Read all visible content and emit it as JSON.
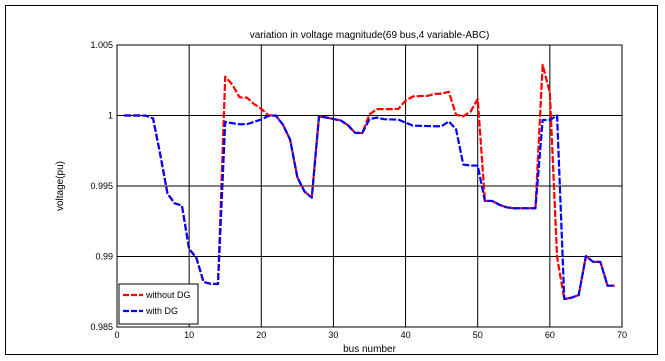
{
  "chart_data": {
    "type": "line",
    "title": "variation in voltage magnitude(69 bus,4 variable-ABC)",
    "xlabel": "bus number",
    "ylabel": "voltage(pu)",
    "xlim": [
      0,
      70
    ],
    "ylim": [
      0.985,
      1.005
    ],
    "xticks": [
      0,
      10,
      20,
      30,
      40,
      50,
      60,
      70
    ],
    "yticks": [
      0.985,
      0.99,
      0.995,
      1,
      1.005
    ],
    "xtick_labels": [
      "0",
      "10",
      "20",
      "30",
      "40",
      "50",
      "60",
      "70"
    ],
    "ytick_labels": [
      "0.985",
      "0.99",
      "0.995",
      "1",
      "1.005"
    ],
    "grid": true,
    "legend_position": "bottom-left",
    "series": [
      {
        "name": "without DG",
        "color": "#ff0000",
        "x": [
          1,
          2,
          3,
          4,
          5,
          6,
          7,
          8,
          9,
          10,
          11,
          12,
          13,
          14,
          15,
          16,
          17,
          18,
          19,
          20,
          21,
          22,
          23,
          24,
          25,
          26,
          27,
          28,
          29,
          30,
          31,
          32,
          33,
          34,
          35,
          36,
          37,
          38,
          39,
          40,
          41,
          42,
          43,
          44,
          45,
          46,
          47,
          48,
          49,
          50,
          51,
          52,
          53,
          54,
          55,
          56,
          57,
          58,
          59,
          60,
          61,
          62,
          63,
          64,
          65,
          66,
          67,
          68,
          69
        ],
        "y": [
          1.0,
          1.0,
          1.0,
          0.99999,
          0.99979,
          0.99722,
          0.99446,
          0.99377,
          0.99361,
          0.99053,
          0.98991,
          0.98819,
          0.98806,
          0.98805,
          1.00276,
          1.00218,
          1.00128,
          1.00127,
          1.00081,
          1.00047,
          1.00002,
          1.0,
          0.99935,
          0.99828,
          0.99562,
          0.9946,
          0.99418,
          0.99993,
          0.99986,
          0.99975,
          0.99965,
          0.99932,
          0.99877,
          0.99876,
          1.00008,
          1.00045,
          1.00045,
          1.00045,
          1.00047,
          1.00106,
          1.00135,
          1.00138,
          1.00139,
          1.00153,
          1.00155,
          1.00168,
          1.00005,
          0.99994,
          1.00027,
          1.00117,
          0.99394,
          0.99394,
          0.99367,
          0.99349,
          0.99342,
          0.99342,
          0.99342,
          0.99342,
          1.00359,
          1.00162,
          0.98997,
          0.98698,
          0.98708,
          0.98727,
          0.99003,
          0.98962,
          0.98962,
          0.98793,
          0.98793
        ]
      },
      {
        "name": "with DG",
        "color": "#0000ff",
        "x": [
          1,
          2,
          3,
          4,
          5,
          6,
          7,
          8,
          9,
          10,
          11,
          12,
          13,
          14,
          15,
          16,
          17,
          18,
          19,
          20,
          21,
          22,
          23,
          24,
          25,
          26,
          27,
          28,
          29,
          30,
          31,
          32,
          33,
          34,
          35,
          36,
          37,
          38,
          39,
          40,
          41,
          42,
          43,
          44,
          45,
          46,
          47,
          48,
          49,
          50,
          51,
          52,
          53,
          54,
          55,
          56,
          57,
          58,
          59,
          60,
          61,
          62,
          63,
          64,
          65,
          66,
          67,
          68,
          69
        ],
        "y": [
          1.0,
          1.0,
          1.0,
          0.99999,
          0.99979,
          0.99722,
          0.99446,
          0.99377,
          0.99361,
          0.99053,
          0.98991,
          0.98819,
          0.98806,
          0.98805,
          0.99955,
          0.99945,
          0.99938,
          0.99938,
          0.99955,
          0.99972,
          0.99997,
          1.0,
          0.99935,
          0.99828,
          0.99562,
          0.9946,
          0.99418,
          0.99993,
          0.99986,
          0.99975,
          0.99965,
          0.99932,
          0.99877,
          0.99876,
          0.99974,
          0.99985,
          0.99974,
          0.99972,
          0.99971,
          0.9995,
          0.99928,
          0.99927,
          0.99925,
          0.99924,
          0.99924,
          0.99958,
          0.99902,
          0.99652,
          0.99645,
          0.99645,
          0.99394,
          0.99394,
          0.99367,
          0.99349,
          0.99342,
          0.99342,
          0.99342,
          0.99342,
          0.99968,
          0.99968,
          1.0,
          0.98698,
          0.98708,
          0.98727,
          0.99003,
          0.98962,
          0.98962,
          0.98793,
          0.98793
        ]
      }
    ]
  }
}
